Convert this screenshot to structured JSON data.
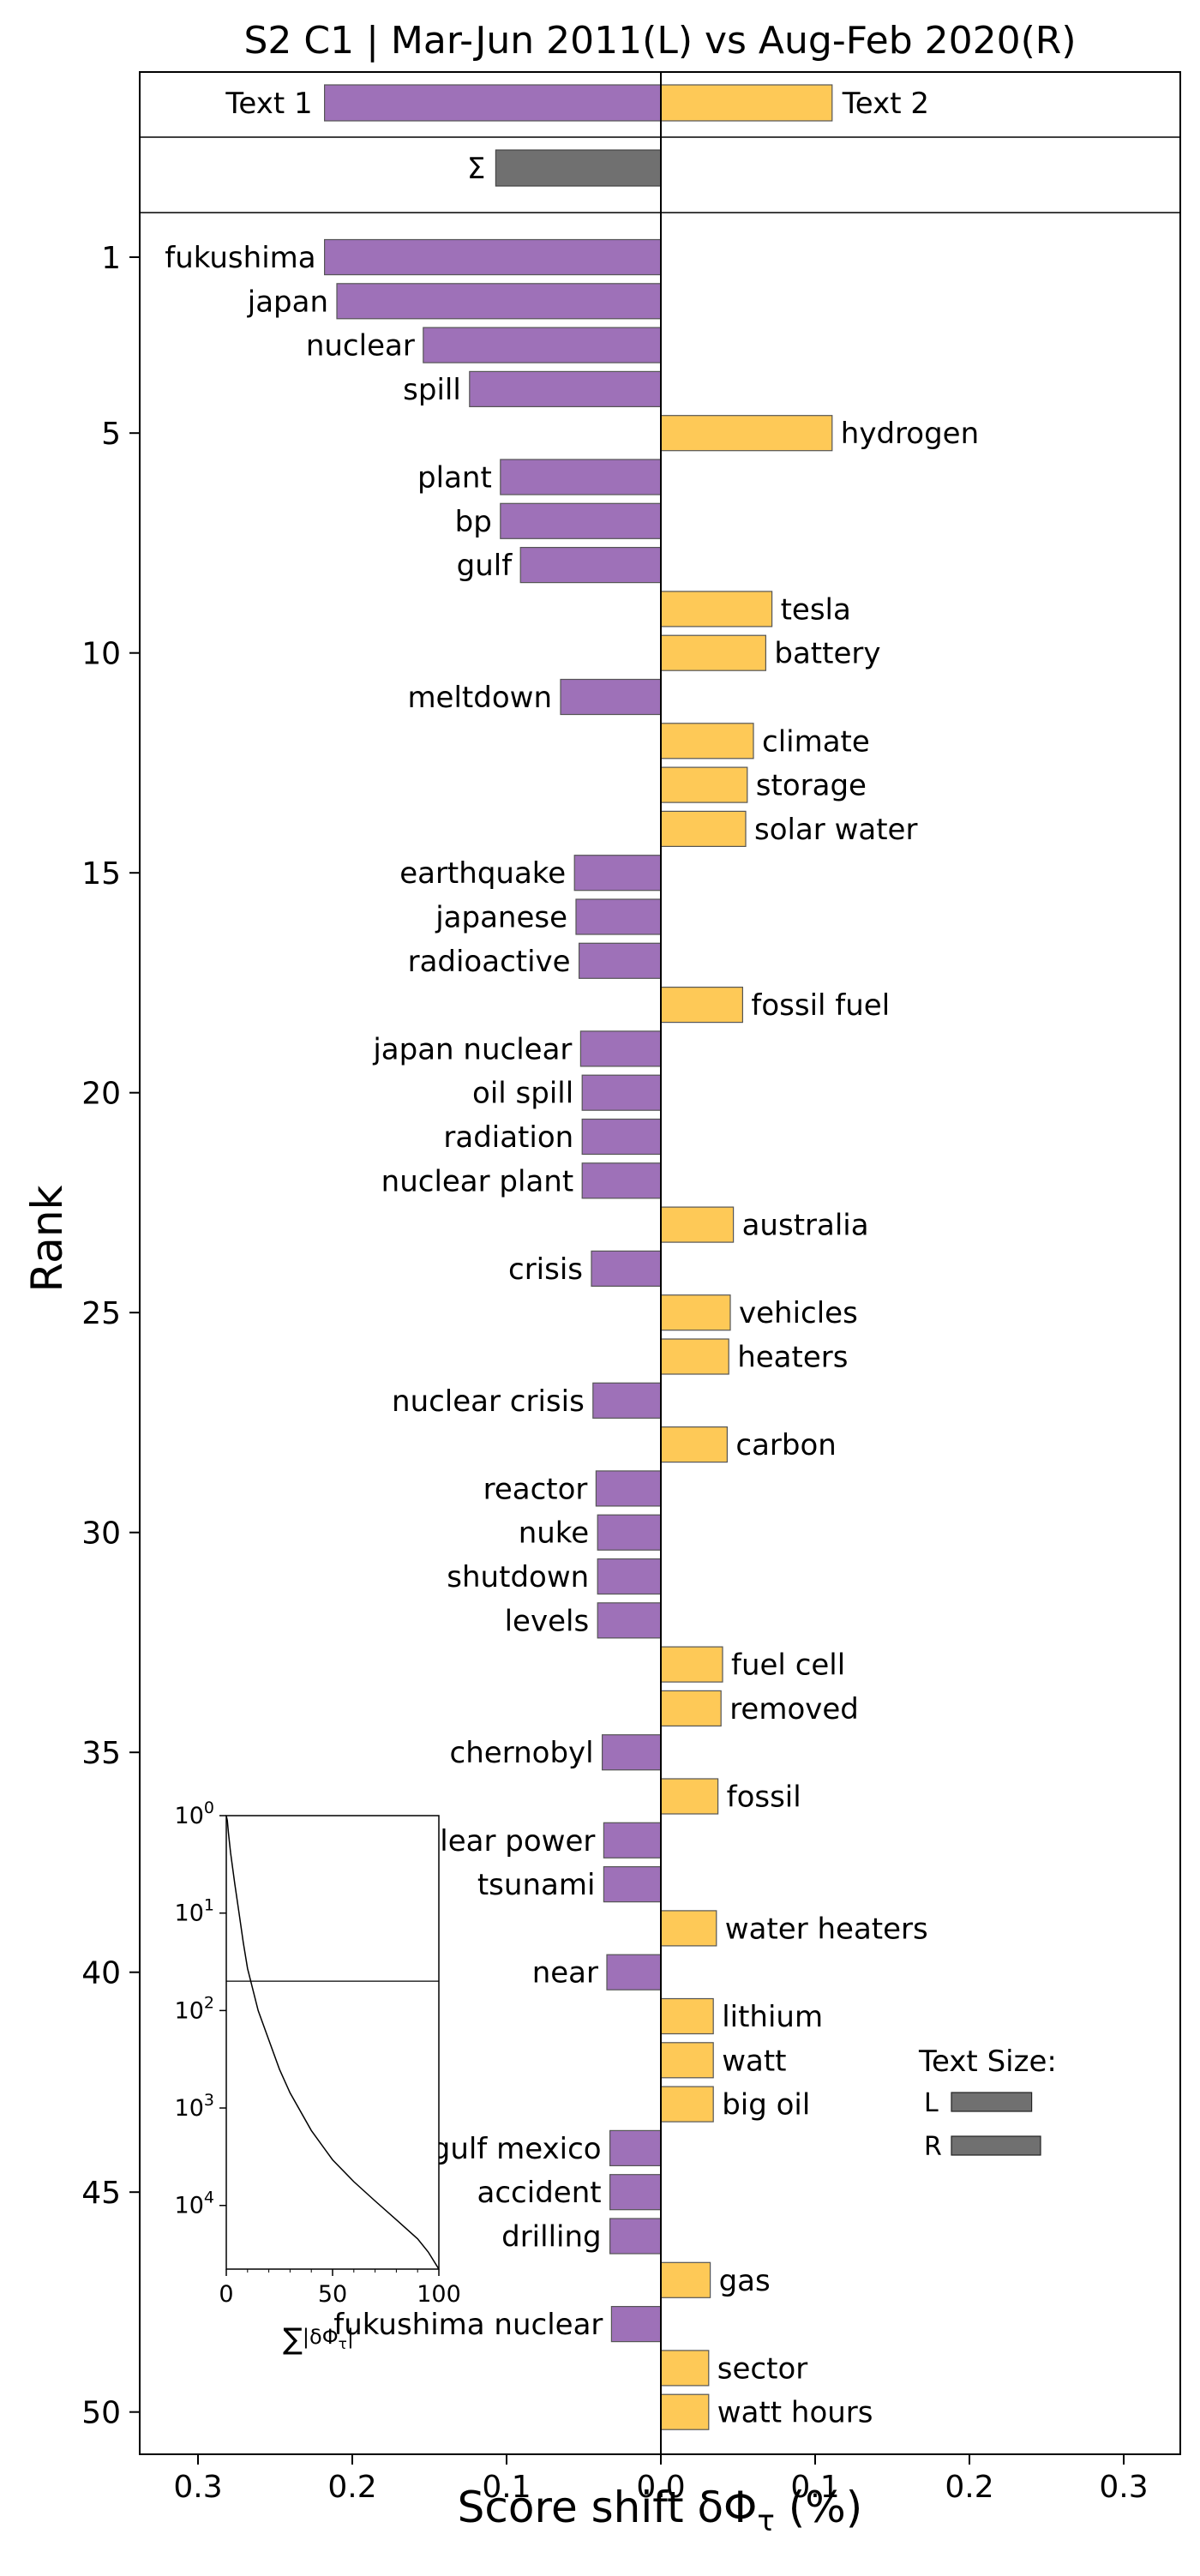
{
  "chart_data": {
    "type": "bar",
    "orientation": "horizontal",
    "title": "S2 C1 | Mar-Jun 2011(L) vs Aug-Feb 2020(R)",
    "xlabel": "Score shift δΦ",
    "xlabel_sub": "τ",
    "xlabel_unit": " (%)",
    "ylabel": "Rank",
    "xlim": [
      -0.34,
      0.34
    ],
    "x_ticks": [
      {
        "value": -0.3,
        "label": "0.3"
      },
      {
        "value": -0.2,
        "label": "0.2"
      },
      {
        "value": -0.1,
        "label": "0.1"
      },
      {
        "value": 0.0,
        "label": "0.0"
      },
      {
        "value": 0.1,
        "label": "0.1"
      },
      {
        "value": 0.2,
        "label": "0.2"
      },
      {
        "value": 0.3,
        "label": "0.3"
      }
    ],
    "y_ticks": [
      "1",
      "5",
      "10",
      "15",
      "20",
      "25",
      "30",
      "35",
      "40",
      "45",
      "50"
    ],
    "colors": {
      "left": "#9e71b8",
      "right": "#fec957",
      "sum": "#707070",
      "grid": "#000000"
    },
    "totals": {
      "text1_label": "Text 1",
      "text2_label": "Text 2",
      "text1_value": -0.218,
      "text2_value": 0.111,
      "sigma_label": "Σ",
      "sigma_value": -0.107
    },
    "words": [
      {
        "rank": 1,
        "word": "fukushima",
        "value": -0.218
      },
      {
        "rank": 2,
        "word": "japan",
        "value": -0.21
      },
      {
        "rank": 3,
        "word": "nuclear",
        "value": -0.154
      },
      {
        "rank": 4,
        "word": "spill",
        "value": -0.124
      },
      {
        "rank": 5,
        "word": "hydrogen",
        "value": 0.111
      },
      {
        "rank": 6,
        "word": "plant",
        "value": -0.104
      },
      {
        "rank": 7,
        "word": "bp",
        "value": -0.104
      },
      {
        "rank": 8,
        "word": "gulf",
        "value": -0.091
      },
      {
        "rank": 9,
        "word": "tesla",
        "value": 0.072
      },
      {
        "rank": 10,
        "word": "battery",
        "value": 0.068
      },
      {
        "rank": 11,
        "word": "meltdown",
        "value": -0.065
      },
      {
        "rank": 12,
        "word": "climate",
        "value": 0.06
      },
      {
        "rank": 13,
        "word": "storage",
        "value": 0.056
      },
      {
        "rank": 14,
        "word": "solar water",
        "value": 0.055
      },
      {
        "rank": 15,
        "word": "earthquake",
        "value": -0.056
      },
      {
        "rank": 16,
        "word": "japanese",
        "value": -0.055
      },
      {
        "rank": 17,
        "word": "radioactive",
        "value": -0.053
      },
      {
        "rank": 18,
        "word": "fossil fuel",
        "value": 0.053
      },
      {
        "rank": 19,
        "word": "japan nuclear",
        "value": -0.052
      },
      {
        "rank": 20,
        "word": "oil spill",
        "value": -0.051
      },
      {
        "rank": 21,
        "word": "radiation",
        "value": -0.051
      },
      {
        "rank": 22,
        "word": "nuclear plant",
        "value": -0.051
      },
      {
        "rank": 23,
        "word": "australia",
        "value": 0.047
      },
      {
        "rank": 24,
        "word": "crisis",
        "value": -0.045
      },
      {
        "rank": 25,
        "word": "vehicles",
        "value": 0.045
      },
      {
        "rank": 26,
        "word": "heaters",
        "value": 0.044
      },
      {
        "rank": 27,
        "word": "nuclear crisis",
        "value": -0.044
      },
      {
        "rank": 28,
        "word": "carbon",
        "value": 0.043
      },
      {
        "rank": 29,
        "word": "reactor",
        "value": -0.042
      },
      {
        "rank": 30,
        "word": "nuke",
        "value": -0.041
      },
      {
        "rank": 31,
        "word": "shutdown",
        "value": -0.041
      },
      {
        "rank": 32,
        "word": "levels",
        "value": -0.041
      },
      {
        "rank": 33,
        "word": "fuel cell",
        "value": 0.04
      },
      {
        "rank": 34,
        "word": "removed",
        "value": 0.039
      },
      {
        "rank": 35,
        "word": "chernobyl",
        "value": -0.038
      },
      {
        "rank": 36,
        "word": "fossil",
        "value": 0.037
      },
      {
        "rank": 37,
        "word": "nuclear power",
        "value": -0.037
      },
      {
        "rank": 38,
        "word": "tsunami",
        "value": -0.037
      },
      {
        "rank": 39,
        "word": "water heaters",
        "value": 0.036
      },
      {
        "rank": 40,
        "word": "near",
        "value": -0.035
      },
      {
        "rank": 41,
        "word": "lithium",
        "value": 0.034
      },
      {
        "rank": 42,
        "word": "watt",
        "value": 0.034
      },
      {
        "rank": 43,
        "word": "big oil",
        "value": 0.034
      },
      {
        "rank": 44,
        "word": "gulf mexico",
        "value": -0.033
      },
      {
        "rank": 45,
        "word": "accident",
        "value": -0.033
      },
      {
        "rank": 46,
        "word": "drilling",
        "value": -0.033
      },
      {
        "rank": 47,
        "word": "gas",
        "value": 0.032
      },
      {
        "rank": 48,
        "word": "fukushima nuclear",
        "value": -0.032
      },
      {
        "rank": 49,
        "word": "sector",
        "value": 0.031
      },
      {
        "rank": 50,
        "word": "watt hours",
        "value": 0.031
      }
    ],
    "text_size_legend": {
      "title": "Text Size:",
      "items": [
        {
          "label": "L",
          "relative_size": 0.9
        },
        {
          "label": "R",
          "relative_size": 1.0
        }
      ]
    },
    "inset": {
      "type": "line",
      "xlabel_prefix": "∑",
      "xlabel_body": "|δΦ",
      "xlabel_sub": "τ",
      "xlabel_suffix": "|",
      "xlim": [
        0,
        100
      ],
      "x_ticks": [
        "0",
        "50",
        "100"
      ],
      "y_scale": "log",
      "y_ticks": [
        {
          "base": "10",
          "exp": "0"
        },
        {
          "base": "10",
          "exp": "1"
        },
        {
          "base": "10",
          "exp": "2"
        },
        {
          "base": "10",
          "exp": "3"
        },
        {
          "base": "10",
          "exp": "4"
        }
      ],
      "reference_rank": 50,
      "curve": [
        [
          0,
          1
        ],
        [
          0.5,
          1.12
        ],
        [
          1,
          1.5
        ],
        [
          2,
          2.4
        ],
        [
          4,
          5
        ],
        [
          6,
          10
        ],
        [
          8,
          20
        ],
        [
          10,
          37
        ],
        [
          15,
          100
        ],
        [
          20,
          200
        ],
        [
          25,
          400
        ],
        [
          30,
          700
        ],
        [
          40,
          1700
        ],
        [
          50,
          3400
        ],
        [
          60,
          5700
        ],
        [
          70,
          9000
        ],
        [
          80,
          14000
        ],
        [
          90,
          22000
        ],
        [
          95,
          30000
        ],
        [
          100,
          45000
        ]
      ]
    }
  }
}
